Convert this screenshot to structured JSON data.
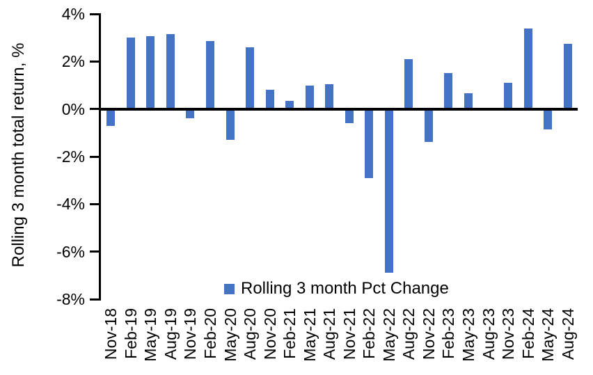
{
  "chart_data": {
    "type": "bar",
    "title": "",
    "xlabel": "",
    "ylabel": "Rolling 3 month total return, %",
    "categories": [
      "Nov-18",
      "Feb-19",
      "May-19",
      "Aug-19",
      "Nov-19",
      "Feb-20",
      "May-20",
      "Aug-20",
      "Nov-20",
      "Feb-21",
      "May-21",
      "Aug-21",
      "Nov-21",
      "Feb-22",
      "May-22",
      "Aug-22",
      "Nov-22",
      "Feb-23",
      "May-23",
      "Aug-23",
      "Nov-23",
      "Feb-24",
      "May-24",
      "Aug-24"
    ],
    "series": [
      {
        "name": "Rolling 3 month Pct Change",
        "values": [
          -0.7,
          3.0,
          3.05,
          3.15,
          -0.4,
          2.85,
          -1.3,
          2.6,
          0.8,
          0.35,
          1.0,
          1.05,
          -0.6,
          -2.9,
          -6.9,
          2.1,
          -1.4,
          1.5,
          0.65,
          0.0,
          1.1,
          3.4,
          -0.85,
          2.75
        ]
      }
    ],
    "ylim": [
      -8,
      4
    ],
    "ytick_step": 2,
    "ytick_values": [
      4,
      2,
      0,
      -2,
      -4,
      -6,
      -8
    ],
    "ytick_labels": [
      "4%",
      "2%",
      "0%",
      "-2%",
      "-4%",
      "-6%",
      "-8%"
    ],
    "grid": false,
    "legend_position": "bottom-center-inside",
    "bar_color": "#4472C4",
    "axis_color": "#000000",
    "background_color": "#FFFFFF"
  },
  "legend": {
    "label": "Rolling 3 month Pct Change",
    "marker_color": "#4472C4"
  }
}
